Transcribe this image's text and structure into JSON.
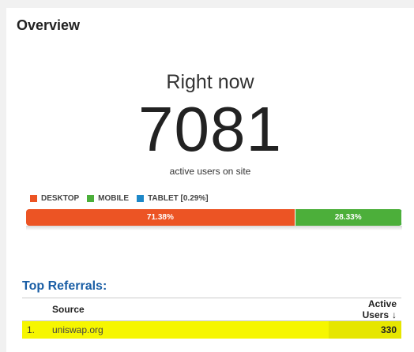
{
  "overview": {
    "title": "Overview",
    "right_now_label": "Right now",
    "active_users": "7081",
    "subtitle": "active users on site"
  },
  "devices": {
    "legend": [
      {
        "label": "DESKTOP",
        "color": "#ec5424"
      },
      {
        "label": "MOBILE",
        "color": "#4caf3a"
      },
      {
        "label": "TABLET [0.29%]",
        "color": "#1e88c8"
      }
    ],
    "segments": [
      {
        "name": "desktop",
        "percent": 71.38,
        "label": "71.38%",
        "color": "#ec5424"
      },
      {
        "name": "mobile",
        "percent": 28.33,
        "label": "28.33%",
        "color": "#4caf3a"
      },
      {
        "name": "tablet",
        "percent": 0.29,
        "label": "",
        "color": "#1e88c8"
      }
    ]
  },
  "referrals": {
    "title": "Top Referrals:",
    "columns": {
      "source": "Source",
      "active_users": "Active Users"
    },
    "sort_icon": "arrow-down-icon",
    "rows": [
      {
        "index": "1.",
        "source": "uniswap.org",
        "active_users": "330"
      }
    ]
  }
}
